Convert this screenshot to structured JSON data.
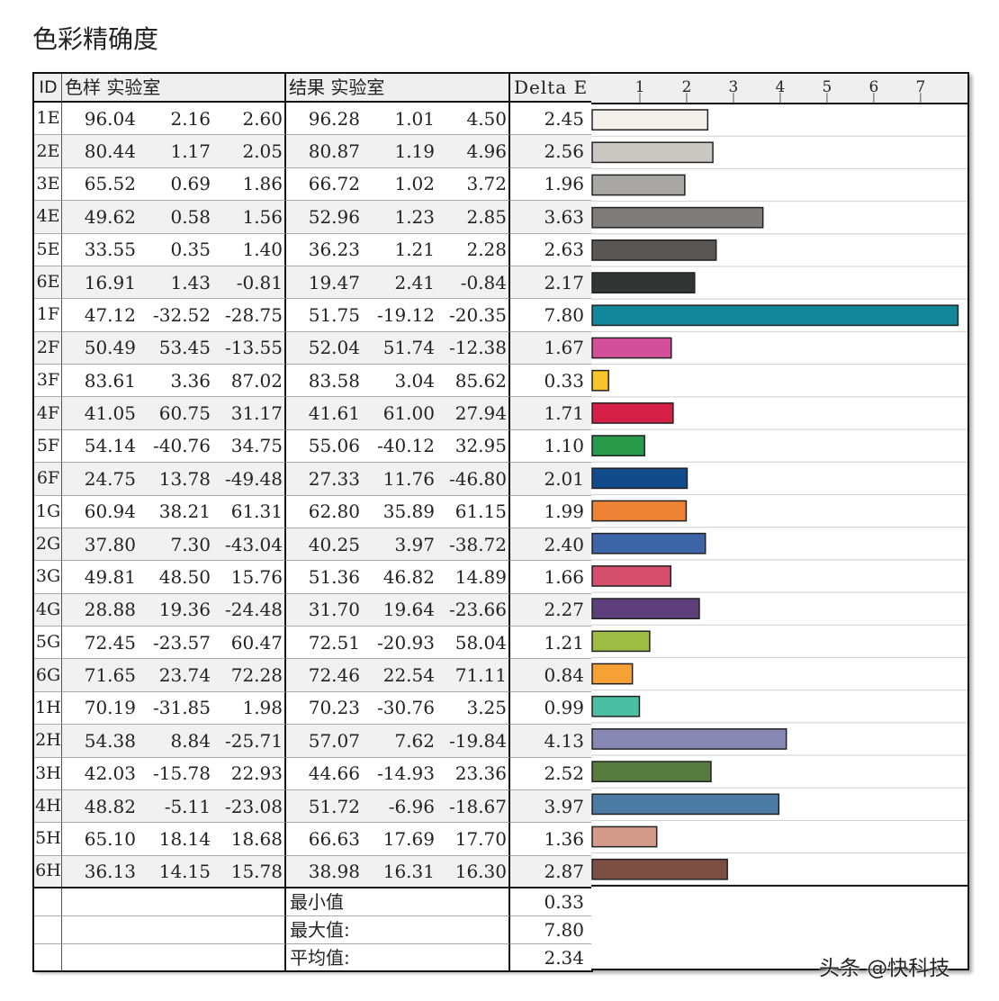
{
  "title": "色彩精确度",
  "watermark": "头条 @快科技",
  "headers": {
    "id": "ID",
    "sample": "色样 实验室",
    "result": "结果 实验室",
    "delta": "Delta E"
  },
  "chart_data": {
    "type": "bar",
    "orientation": "horizontal",
    "categories": [
      "1E",
      "2E",
      "3E",
      "4E",
      "5E",
      "6E",
      "1F",
      "2F",
      "3F",
      "4F",
      "5F",
      "6F",
      "1G",
      "2G",
      "3G",
      "4G",
      "5G",
      "6G",
      "1H",
      "2H",
      "3H",
      "4H",
      "5H",
      "6H"
    ],
    "values": [
      2.45,
      2.56,
      1.96,
      3.63,
      2.63,
      2.17,
      7.8,
      1.67,
      0.33,
      1.71,
      1.1,
      2.01,
      1.99,
      2.4,
      1.66,
      2.27,
      1.21,
      0.84,
      0.99,
      4.13,
      2.52,
      3.97,
      1.36,
      2.87
    ],
    "colors": [
      "#f3f0ec",
      "#cbc7c2",
      "#a8a7a3",
      "#7e7d7a",
      "#595654",
      "#333434",
      "#13879a",
      "#d44f99",
      "#f7c52a",
      "#d51f47",
      "#2a9a4b",
      "#124b8c",
      "#ee8235",
      "#3d64a6",
      "#d6506d",
      "#5e3f7c",
      "#9fbc44",
      "#f6a136",
      "#4cbea2",
      "#8789b4",
      "#577a3f",
      "#4b7ba3",
      "#d49a8a",
      "#7b4f43"
    ],
    "x_ticks": [
      "1",
      "2",
      "3",
      "4",
      "5",
      "6",
      "7"
    ],
    "xlim": [
      0,
      7.85
    ]
  },
  "rows": [
    {
      "id": "1E",
      "s": [
        "96.04",
        "2.16",
        "2.60"
      ],
      "r": [
        "96.28",
        "1.01",
        "4.50"
      ],
      "de": "2.45"
    },
    {
      "id": "2E",
      "s": [
        "80.44",
        "1.17",
        "2.05"
      ],
      "r": [
        "80.87",
        "1.19",
        "4.96"
      ],
      "de": "2.56"
    },
    {
      "id": "3E",
      "s": [
        "65.52",
        "0.69",
        "1.86"
      ],
      "r": [
        "66.72",
        "1.02",
        "3.72"
      ],
      "de": "1.96"
    },
    {
      "id": "4E",
      "s": [
        "49.62",
        "0.58",
        "1.56"
      ],
      "r": [
        "52.96",
        "1.23",
        "2.85"
      ],
      "de": "3.63"
    },
    {
      "id": "5E",
      "s": [
        "33.55",
        "0.35",
        "1.40"
      ],
      "r": [
        "36.23",
        "1.21",
        "2.28"
      ],
      "de": "2.63"
    },
    {
      "id": "6E",
      "s": [
        "16.91",
        "1.43",
        "-0.81"
      ],
      "r": [
        "19.47",
        "2.41",
        "-0.84"
      ],
      "de": "2.17"
    },
    {
      "id": "1F",
      "s": [
        "47.12",
        "-32.52",
        "-28.75"
      ],
      "r": [
        "51.75",
        "-19.12",
        "-20.35"
      ],
      "de": "7.80"
    },
    {
      "id": "2F",
      "s": [
        "50.49",
        "53.45",
        "-13.55"
      ],
      "r": [
        "52.04",
        "51.74",
        "-12.38"
      ],
      "de": "1.67"
    },
    {
      "id": "3F",
      "s": [
        "83.61",
        "3.36",
        "87.02"
      ],
      "r": [
        "83.58",
        "3.04",
        "85.62"
      ],
      "de": "0.33"
    },
    {
      "id": "4F",
      "s": [
        "41.05",
        "60.75",
        "31.17"
      ],
      "r": [
        "41.61",
        "61.00",
        "27.94"
      ],
      "de": "1.71"
    },
    {
      "id": "5F",
      "s": [
        "54.14",
        "-40.76",
        "34.75"
      ],
      "r": [
        "55.06",
        "-40.12",
        "32.95"
      ],
      "de": "1.10"
    },
    {
      "id": "6F",
      "s": [
        "24.75",
        "13.78",
        "-49.48"
      ],
      "r": [
        "27.33",
        "11.76",
        "-46.80"
      ],
      "de": "2.01"
    },
    {
      "id": "1G",
      "s": [
        "60.94",
        "38.21",
        "61.31"
      ],
      "r": [
        "62.80",
        "35.89",
        "61.15"
      ],
      "de": "1.99"
    },
    {
      "id": "2G",
      "s": [
        "37.80",
        "7.30",
        "-43.04"
      ],
      "r": [
        "40.25",
        "3.97",
        "-38.72"
      ],
      "de": "2.40"
    },
    {
      "id": "3G",
      "s": [
        "49.81",
        "48.50",
        "15.76"
      ],
      "r": [
        "51.36",
        "46.82",
        "14.89"
      ],
      "de": "1.66"
    },
    {
      "id": "4G",
      "s": [
        "28.88",
        "19.36",
        "-24.48"
      ],
      "r": [
        "31.70",
        "19.64",
        "-23.66"
      ],
      "de": "2.27"
    },
    {
      "id": "5G",
      "s": [
        "72.45",
        "-23.57",
        "60.47"
      ],
      "r": [
        "72.51",
        "-20.93",
        "58.04"
      ],
      "de": "1.21"
    },
    {
      "id": "6G",
      "s": [
        "71.65",
        "23.74",
        "72.28"
      ],
      "r": [
        "72.46",
        "22.54",
        "71.11"
      ],
      "de": "0.84"
    },
    {
      "id": "1H",
      "s": [
        "70.19",
        "-31.85",
        "1.98"
      ],
      "r": [
        "70.23",
        "-30.76",
        "3.25"
      ],
      "de": "0.99"
    },
    {
      "id": "2H",
      "s": [
        "54.38",
        "8.84",
        "-25.71"
      ],
      "r": [
        "57.07",
        "7.62",
        "-19.84"
      ],
      "de": "4.13"
    },
    {
      "id": "3H",
      "s": [
        "42.03",
        "-15.78",
        "22.93"
      ],
      "r": [
        "44.66",
        "-14.93",
        "23.36"
      ],
      "de": "2.52"
    },
    {
      "id": "4H",
      "s": [
        "48.82",
        "-5.11",
        "-23.08"
      ],
      "r": [
        "51.72",
        "-6.96",
        "-18.67"
      ],
      "de": "3.97"
    },
    {
      "id": "5H",
      "s": [
        "65.10",
        "18.14",
        "18.68"
      ],
      "r": [
        "66.63",
        "17.69",
        "17.70"
      ],
      "de": "1.36"
    },
    {
      "id": "6H",
      "s": [
        "36.13",
        "14.15",
        "15.78"
      ],
      "r": [
        "38.98",
        "16.31",
        "16.30"
      ],
      "de": "2.87"
    }
  ],
  "stats": [
    {
      "label": "最小值",
      "value": "0.33"
    },
    {
      "label": "最大值:",
      "value": "7.80"
    },
    {
      "label": "平均值:",
      "value": "2.34"
    }
  ]
}
